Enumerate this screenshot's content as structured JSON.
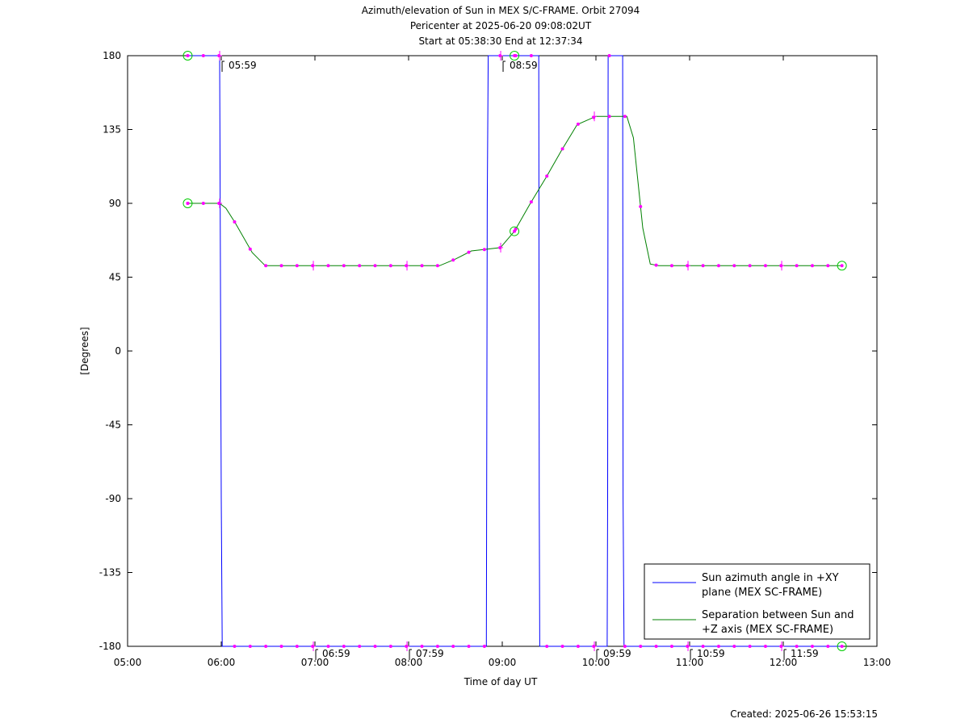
{
  "chart_data": {
    "type": "line",
    "title_lines": [
      "Azimuth/elevation of Sun in MEX S/C-FRAME.  Orbit 27094",
      "Pericenter at 2025-06-20 09:08:02UT",
      "Start at 05:38:30 End at 12:37:34"
    ],
    "xlabel": "Time of day UT",
    "ylabel": "[Degrees]",
    "footer": "Created: 2025-06-26 15:53:15",
    "xlim": [
      5.0,
      13.0
    ],
    "ylim": [
      -180,
      180
    ],
    "x_ticks": [
      {
        "value": 5,
        "label": "05:00"
      },
      {
        "value": 6,
        "label": "06:00"
      },
      {
        "value": 7,
        "label": "07:00"
      },
      {
        "value": 8,
        "label": "08:00"
      },
      {
        "value": 9,
        "label": "09:00"
      },
      {
        "value": 10,
        "label": "10:00"
      },
      {
        "value": 11,
        "label": "11:00"
      },
      {
        "value": 12,
        "label": "12:00"
      },
      {
        "value": 13,
        "label": "13:00"
      }
    ],
    "y_ticks": [
      {
        "value": 180,
        "label": "180"
      },
      {
        "value": 135,
        "label": "135"
      },
      {
        "value": 90,
        "label": "90"
      },
      {
        "value": 45,
        "label": "45"
      },
      {
        "value": 0,
        "label": "0"
      },
      {
        "value": -45,
        "label": "-45"
      },
      {
        "value": -90,
        "label": "-90"
      },
      {
        "value": -135,
        "label": "-135"
      },
      {
        "value": -180,
        "label": "-180"
      }
    ],
    "hour_markers": [
      {
        "x": 5.983,
        "y": 180,
        "label": "05:59"
      },
      {
        "x": 6.983,
        "y": -180,
        "label": "06:59"
      },
      {
        "x": 7.983,
        "y": -180,
        "label": "07:59"
      },
      {
        "x": 8.983,
        "y": 180,
        "label": "08:59"
      },
      {
        "x": 9.983,
        "y": -180,
        "label": "09:59"
      },
      {
        "x": 10.983,
        "y": -180,
        "label": "10:59"
      },
      {
        "x": 11.983,
        "y": -180,
        "label": "11:59"
      }
    ],
    "series": [
      {
        "name": "Sun azimuth angle in +XY plane (MEX SC-FRAME)",
        "label_lines": [
          "Sun azimuth angle in +XY",
          "plane (MEX SC-FRAME)"
        ],
        "color": "#0000ff",
        "points": [
          [
            5.642,
            180
          ],
          [
            5.983,
            180
          ],
          [
            6.0,
            -90
          ],
          [
            6.01,
            -180
          ],
          [
            8.83,
            -180
          ],
          [
            8.84,
            90
          ],
          [
            8.85,
            180
          ],
          [
            9.1,
            180
          ],
          [
            9.39,
            180
          ],
          [
            9.395,
            -90
          ],
          [
            9.4,
            -180
          ],
          [
            10.12,
            -180
          ],
          [
            10.125,
            -90
          ],
          [
            10.13,
            180
          ],
          [
            10.285,
            180
          ],
          [
            10.29,
            -90
          ],
          [
            10.3,
            -180
          ],
          [
            12.626,
            -180
          ]
        ]
      },
      {
        "name": "Separation between Sun and +Z axis (MEX SC-FRAME)",
        "label_lines": [
          "Separation between Sun and",
          "+Z axis (MEX SC-FRAME)"
        ],
        "color": "#008000",
        "points": [
          [
            5.642,
            90
          ],
          [
            5.8,
            90
          ],
          [
            5.983,
            90
          ],
          [
            6.05,
            87
          ],
          [
            6.15,
            78
          ],
          [
            6.33,
            60
          ],
          [
            6.47,
            52
          ],
          [
            6.55,
            52
          ],
          [
            7.0,
            52
          ],
          [
            7.5,
            52
          ],
          [
            8.0,
            52
          ],
          [
            8.33,
            52
          ],
          [
            8.5,
            56
          ],
          [
            8.67,
            61
          ],
          [
            8.83,
            62
          ],
          [
            8.98,
            63
          ],
          [
            9.13,
            73
          ],
          [
            9.3,
            90
          ],
          [
            9.47,
            106
          ],
          [
            9.63,
            122
          ],
          [
            9.8,
            138
          ],
          [
            10.0,
            143
          ],
          [
            10.17,
            143
          ],
          [
            10.33,
            143
          ],
          [
            10.4,
            130
          ],
          [
            10.5,
            75
          ],
          [
            10.58,
            53
          ],
          [
            10.67,
            52
          ],
          [
            11.0,
            52
          ],
          [
            11.5,
            52
          ],
          [
            12.0,
            52
          ],
          [
            12.626,
            52
          ]
        ]
      }
    ],
    "circle_markers": [
      [
        5.642,
        180
      ],
      [
        5.642,
        90
      ],
      [
        9.13,
        180
      ],
      [
        9.13,
        73
      ],
      [
        12.626,
        -180
      ],
      [
        12.626,
        52
      ]
    ],
    "cross_markers": [
      [
        5.983,
        180
      ],
      [
        5.983,
        90
      ],
      [
        6.983,
        52
      ],
      [
        7.983,
        52
      ],
      [
        8.983,
        180
      ],
      [
        8.983,
        63
      ],
      [
        9.983,
        143
      ],
      [
        10.983,
        52
      ],
      [
        11.983,
        52
      ],
      [
        6.983,
        -180
      ],
      [
        7.983,
        -180
      ],
      [
        9.983,
        -180
      ],
      [
        10.983,
        -180
      ],
      [
        11.983,
        -180
      ]
    ],
    "dot_markers": {
      "series_index": 1,
      "sample_step_hours": 0.1667
    },
    "legend_position": "bottom-right",
    "grid": false
  }
}
